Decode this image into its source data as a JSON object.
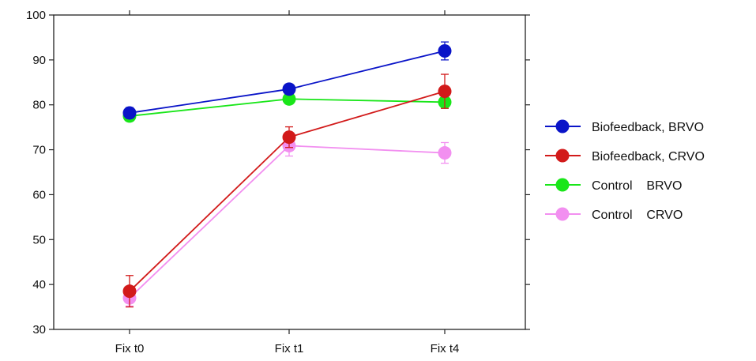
{
  "chart_data": {
    "type": "line",
    "x": [
      "Fix t0",
      "Fix t1",
      "Fix t4"
    ],
    "ylim": [
      30,
      100
    ],
    "yticks": [
      30,
      40,
      50,
      60,
      70,
      80,
      90,
      100
    ],
    "ytick_labels": [
      "30",
      "40",
      "50",
      "60",
      "70",
      "80",
      "90",
      "100"
    ],
    "grid": false,
    "legend_position": "right",
    "series": [
      {
        "name": "Biofeedback, BRVO",
        "color": "#0a14c8",
        "values": [
          78.2,
          83.5,
          92.0
        ],
        "err": [
          1.2,
          1.0,
          2.0
        ]
      },
      {
        "name": "Biofeedback, CRVO",
        "color": "#d21a1a",
        "values": [
          38.5,
          72.8,
          83.0
        ],
        "err": [
          3.5,
          2.3,
          3.8
        ]
      },
      {
        "name": "Control    BRVO",
        "color": "#19e619",
        "values": [
          77.5,
          81.3,
          80.6
        ],
        "err": [
          0.8,
          0.8,
          0.8
        ]
      },
      {
        "name": "Control    CRVO",
        "color": "#f28ff0",
        "values": [
          37.0,
          70.9,
          69.3
        ],
        "err": [
          1.8,
          2.3,
          2.3
        ]
      }
    ]
  }
}
